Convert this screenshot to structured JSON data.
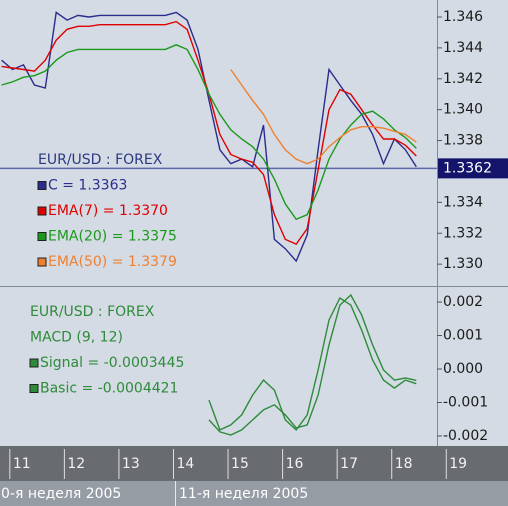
{
  "chart_data": [
    {
      "type": "line",
      "legend_title": "EUR/USD : FOREX",
      "x": [
        10.85,
        11.05,
        11.25,
        11.45,
        11.65,
        11.85,
        12.05,
        12.25,
        12.45,
        12.65,
        12.85,
        13.05,
        13.25,
        13.45,
        13.65,
        13.85,
        14.05,
        14.25,
        14.45,
        14.65,
        14.85,
        15.05,
        15.25,
        15.45,
        15.65,
        15.85,
        16.05,
        16.25,
        16.45,
        16.65,
        16.85,
        17.05,
        17.25,
        17.45,
        17.65,
        17.85,
        18.05,
        18.25,
        18.45
      ],
      "xlim": [
        10.82,
        18.83
      ],
      "ylim": [
        1.32865,
        1.3471
      ],
      "yticks": [
        {
          "value": 1.33,
          "label": "1.330"
        },
        1.332,
        1.334,
        1.338,
        {
          "value": 1.34,
          "label": "1.340"
        },
        1.342,
        1.344,
        1.346
      ],
      "current_price": 1.3362,
      "series": [
        {
          "name": "C = 1.3363",
          "color": "#2a2d8c",
          "values": [
            1.3432,
            1.3426,
            1.3429,
            1.3416,
            1.3414,
            1.3463,
            1.3458,
            1.3461,
            1.346,
            1.3461,
            1.3461,
            1.3461,
            1.3461,
            1.3461,
            1.3461,
            1.3461,
            1.3463,
            1.3458,
            1.3439,
            1.3406,
            1.3374,
            1.3365,
            1.3368,
            1.3363,
            1.339,
            1.3316,
            1.331,
            1.3302,
            1.3319,
            1.3374,
            1.3426,
            1.3416,
            1.3406,
            1.3397,
            1.3384,
            1.3365,
            1.3381,
            1.3374,
            1.3363
          ]
        },
        {
          "name": "EMA(7) = 1.3370",
          "color": "#e00000",
          "values": [
            1.3428,
            1.3427,
            1.3426,
            1.3425,
            1.3432,
            1.3445,
            1.3452,
            1.3454,
            1.3454,
            1.3455,
            1.3455,
            1.3455,
            1.3455,
            1.3455,
            1.3455,
            1.3455,
            1.3457,
            1.3452,
            1.3432,
            1.341,
            1.3384,
            1.3371,
            1.3368,
            1.3366,
            1.3358,
            1.3332,
            1.3316,
            1.3313,
            1.3323,
            1.3361,
            1.34,
            1.3413,
            1.341,
            1.34,
            1.339,
            1.3381,
            1.3381,
            1.3377,
            1.337
          ]
        },
        {
          "name": "EMA(20) = 1.3375",
          "color": "#1a9a1a",
          "values": [
            1.3416,
            1.3418,
            1.3421,
            1.3422,
            1.3425,
            1.3432,
            1.3437,
            1.3439,
            1.3439,
            1.3439,
            1.3439,
            1.3439,
            1.3439,
            1.3439,
            1.3439,
            1.3439,
            1.3442,
            1.3439,
            1.3426,
            1.341,
            1.3397,
            1.3387,
            1.3381,
            1.3376,
            1.3368,
            1.3355,
            1.3339,
            1.3329,
            1.3332,
            1.3348,
            1.3368,
            1.3381,
            1.339,
            1.3397,
            1.3399,
            1.3394,
            1.3387,
            1.3382,
            1.3375
          ]
        },
        {
          "name": "EMA(50) = 1.3379",
          "color": "#f08030",
          "values": [
            null,
            null,
            null,
            null,
            null,
            null,
            null,
            null,
            null,
            null,
            null,
            null,
            null,
            null,
            null,
            null,
            null,
            null,
            null,
            null,
            null,
            1.3426,
            1.3416,
            1.3406,
            1.3397,
            1.3384,
            1.3374,
            1.3368,
            1.3365,
            1.3368,
            1.3376,
            1.3382,
            1.3387,
            1.3389,
            1.3389,
            1.3388,
            1.3386,
            1.3384,
            1.3379
          ]
        }
      ]
    },
    {
      "type": "line",
      "legend_title": "EUR/USD : FOREX",
      "subtitle": "MACD (9, 12)",
      "x": [
        10.85,
        11.05,
        11.25,
        11.45,
        11.65,
        11.85,
        12.05,
        12.25,
        12.45,
        12.65,
        12.85,
        13.05,
        13.25,
        13.45,
        13.65,
        13.85,
        14.05,
        14.25,
        14.45,
        14.65,
        14.85,
        15.05,
        15.25,
        15.45,
        15.65,
        15.85,
        16.05,
        16.25,
        16.45,
        16.65,
        16.85,
        17.05,
        17.25,
        17.45,
        17.65,
        17.85,
        18.05,
        18.25,
        18.45
      ],
      "xlim": [
        10.82,
        18.83
      ],
      "xticks": [
        11,
        12,
        13,
        14,
        15,
        16,
        17,
        18,
        19
      ],
      "period_labels": [
        "0-я неделя 2005",
        "11-я неделя 2005"
      ],
      "ylim": [
        -0.00227,
        0.00242
      ],
      "yticks": [
        {
          "value": -0.002,
          "label": "-0.002"
        },
        {
          "value": -0.001,
          "label": "-0.001"
        },
        {
          "value": 0,
          "label": "0.000"
        },
        0.001,
        0.002
      ],
      "series": [
        {
          "name": "Signal = -0.0003445",
          "color": "#2e8b3a",
          "values": [
            null,
            null,
            null,
            null,
            null,
            null,
            null,
            null,
            null,
            null,
            null,
            null,
            null,
            null,
            null,
            null,
            null,
            null,
            null,
            -0.00152,
            -0.00188,
            -0.00197,
            -0.00182,
            -0.00152,
            -0.00122,
            -0.00107,
            -0.00137,
            -0.00176,
            -0.00167,
            -0.00078,
            0.00072,
            0.00191,
            0.00221,
            0.00161,
            0.00072,
            -3e-05,
            -0.00033,
            -0.00027,
            -0.00034
          ]
        },
        {
          "name": "Basic = -0.0004421",
          "color": "#2e8b3a",
          "values": [
            null,
            null,
            null,
            null,
            null,
            null,
            null,
            null,
            null,
            null,
            null,
            null,
            null,
            null,
            null,
            null,
            null,
            null,
            null,
            -0.00093,
            -0.00182,
            -0.00167,
            -0.00137,
            -0.00078,
            -0.00033,
            -0.00063,
            -0.00152,
            -0.00182,
            -0.00137,
            -3e-05,
            0.00146,
            0.00212,
            0.00191,
            0.00116,
            0.00027,
            -0.00033,
            -0.00057,
            -0.00033,
            -0.00044
          ]
        }
      ]
    }
  ]
}
